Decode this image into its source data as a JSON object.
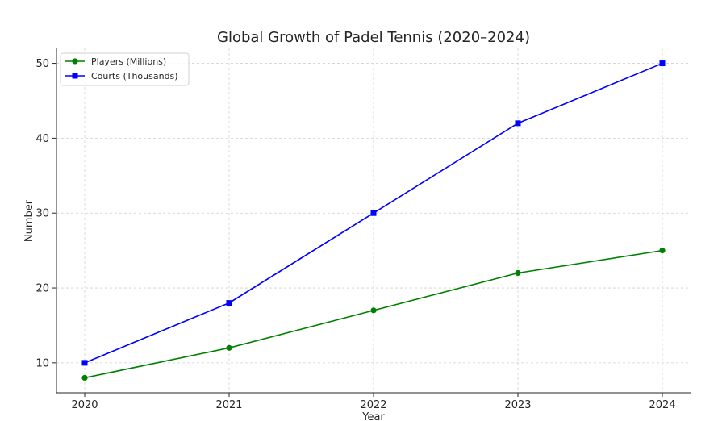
{
  "chart_data": {
    "type": "line",
    "title": "Global Growth of Padel Tennis (2020–2024)",
    "xlabel": "Year",
    "ylabel": "Number",
    "x": [
      "2020",
      "2021",
      "2022",
      "2023",
      "2024"
    ],
    "yticks": [
      "10",
      "20",
      "30",
      "40",
      "50"
    ],
    "ylim": [
      6,
      52
    ],
    "grid": true,
    "legend_position": "top-left",
    "series": [
      {
        "name": "Players (Millions)",
        "values": [
          8,
          12,
          17,
          22,
          25
        ],
        "color": "#008000",
        "marker": "circle"
      },
      {
        "name": "Courts (Thousands)",
        "values": [
          10,
          18,
          30,
          42,
          50
        ],
        "color": "#0000ff",
        "marker": "square"
      }
    ]
  }
}
